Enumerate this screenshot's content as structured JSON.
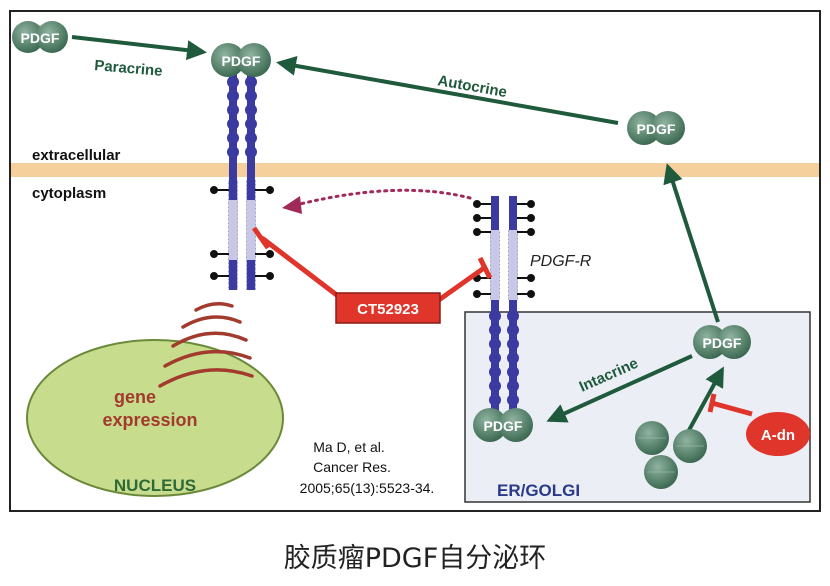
{
  "labels": {
    "pdgf": "PDGF",
    "paracrine": "Paracrine",
    "autocrine": "Autocrine",
    "extracellular": "extracellular",
    "cytoplasm": "cytoplasm",
    "pdgf_r": "PDGF-R",
    "inhibitor": "CT52923",
    "gene_line1": "gene",
    "gene_line2": "expression",
    "nucleus": "NUCLEUS",
    "intacrine": "Intacrine",
    "a_dn": "A-dn",
    "er_golgi": "ER/GOLGI",
    "citation_line1": "Ma D, et al.",
    "citation_line2": "Cancer Res.",
    "citation_line3": "2005;65(13):5523-34."
  },
  "caption": "胶质瘤PDGF自分泌环",
  "colors": {
    "arrow_green": "#1f5a3c",
    "pdgf_ball": "#4d7a63",
    "receptor_blue": "#3a3aa0",
    "receptor_light": "#c8c8e6",
    "membrane": "#f5cf9c",
    "inhibitor_red": "#e0352a",
    "nucleus_fill": "#c8dc8e",
    "gene_text": "#a23a2e",
    "nucleus_text": "#2f6a35",
    "er_golgi_text": "#2a3a8a",
    "er_box": "#eceef6",
    "dotted_arrow": "#a02a5a"
  }
}
